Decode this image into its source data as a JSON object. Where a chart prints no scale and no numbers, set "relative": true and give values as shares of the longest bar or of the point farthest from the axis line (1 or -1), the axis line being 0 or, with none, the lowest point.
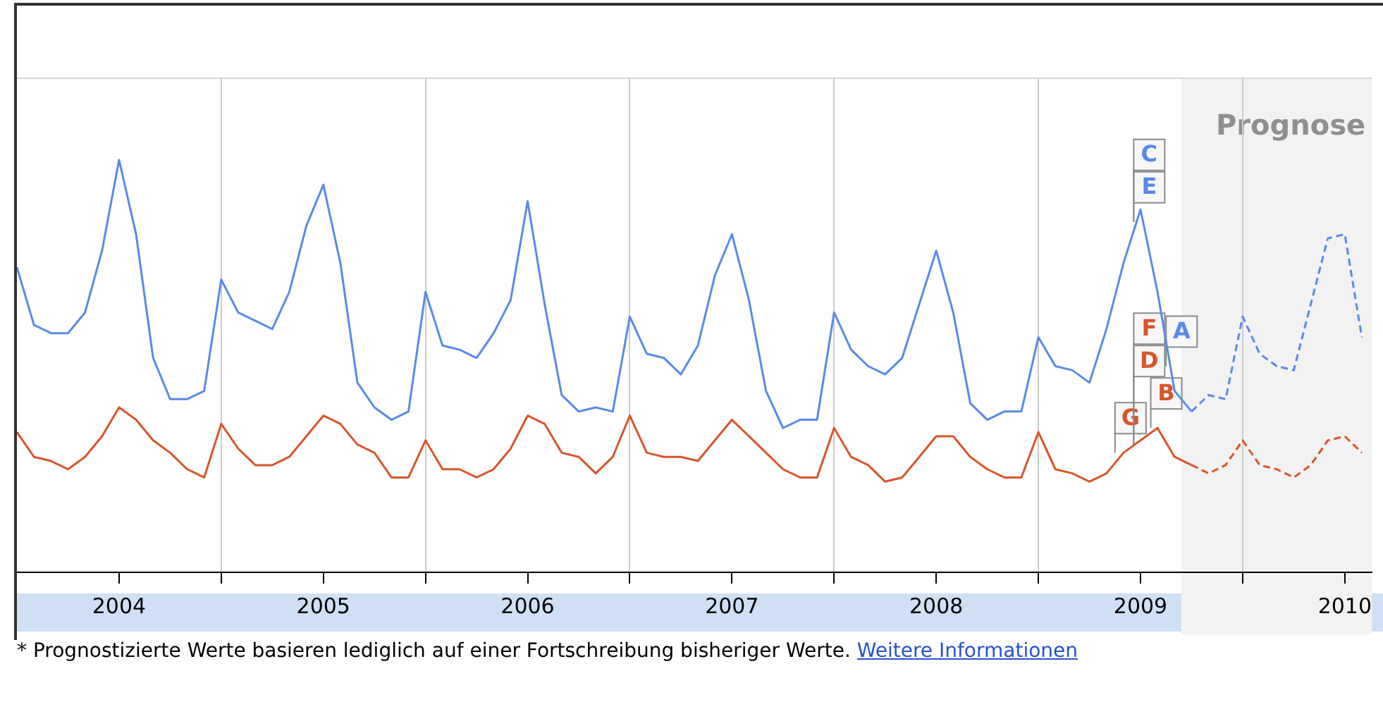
{
  "chart_data": {
    "type": "line",
    "relative": true,
    "legend": false,
    "grid": "x",
    "marker": "none",
    "x": [
      "2004-01",
      "2004-02",
      "2004-03",
      "2004-04",
      "2004-05",
      "2004-06",
      "2004-07",
      "2004-08",
      "2004-09",
      "2004-10",
      "2004-11",
      "2004-12",
      "2005-01",
      "2005-02",
      "2005-03",
      "2005-04",
      "2005-05",
      "2005-06",
      "2005-07",
      "2005-08",
      "2005-09",
      "2005-10",
      "2005-11",
      "2005-12",
      "2006-01",
      "2006-02",
      "2006-03",
      "2006-04",
      "2006-05",
      "2006-06",
      "2006-07",
      "2006-08",
      "2006-09",
      "2006-10",
      "2006-11",
      "2006-12",
      "2007-01",
      "2007-02",
      "2007-03",
      "2007-04",
      "2007-05",
      "2007-06",
      "2007-07",
      "2007-08",
      "2007-09",
      "2007-10",
      "2007-11",
      "2007-12",
      "2008-01",
      "2008-02",
      "2008-03",
      "2008-04",
      "2008-05",
      "2008-06",
      "2008-07",
      "2008-08",
      "2008-09",
      "2008-10",
      "2008-11",
      "2008-12",
      "2009-01",
      "2009-02",
      "2009-03",
      "2009-04",
      "2009-05",
      "2009-06",
      "2009-07",
      "2009-08",
      "2009-09",
      "2009-10",
      "2009-11",
      "2009-12",
      "2010-01",
      "2010-02",
      "2010-03",
      "2010-04",
      "2010-05",
      "2010-06",
      "2010-07",
      "2010-08"
    ],
    "xlim": [
      "2004-01",
      "2010-08-19"
    ],
    "xticks": [
      {
        "value": "2004-07",
        "label": "2004"
      },
      {
        "value": "2005",
        "label": null
      },
      {
        "value": "2005-07",
        "label": "2005"
      },
      {
        "value": "2006",
        "label": null
      },
      {
        "value": "2006-07",
        "label": "2006"
      },
      {
        "value": "2007",
        "label": null
      },
      {
        "value": "2007-07",
        "label": "2007"
      },
      {
        "value": "2008",
        "label": null
      },
      {
        "value": "2008-07",
        "label": "2008"
      },
      {
        "value": "2009",
        "label": null
      },
      {
        "value": "2009-07",
        "label": "2009"
      },
      {
        "value": "2010",
        "label": null
      },
      {
        "value": "2010-07",
        "label": "2010"
      }
    ],
    "series": [
      {
        "color": "#5a8ae8",
        "line_style": "solid",
        "values": [
          0.74,
          0.6,
          0.58,
          0.58,
          0.63,
          0.78,
          1.0,
          0.82,
          0.52,
          0.42,
          0.42,
          0.44,
          0.71,
          0.63,
          0.61,
          0.59,
          0.68,
          0.84,
          0.94,
          0.75,
          0.46,
          0.4,
          0.37,
          0.39,
          0.68,
          0.55,
          0.54,
          0.52,
          0.58,
          0.66,
          0.9,
          0.65,
          0.43,
          0.39,
          0.4,
          0.39,
          0.62,
          0.53,
          0.52,
          0.48,
          0.55,
          0.72,
          0.82,
          0.66,
          0.44,
          0.35,
          0.37,
          0.37,
          0.63,
          0.54,
          0.5,
          0.48,
          0.52,
          0.65,
          0.78,
          0.63,
          0.41,
          0.37,
          0.39,
          0.39,
          0.57,
          0.5,
          0.49,
          0.46,
          0.59,
          0.75,
          0.88,
          0.68,
          0.44,
          0.39,
          null,
          null,
          null,
          null,
          null,
          null,
          null,
          null,
          null,
          null
        ]
      },
      {
        "color": "#d9552b",
        "line_style": "solid",
        "values": [
          0.34,
          0.28,
          0.27,
          0.25,
          0.28,
          0.33,
          0.4,
          0.37,
          0.32,
          0.29,
          0.25,
          0.23,
          0.36,
          0.3,
          0.26,
          0.26,
          0.28,
          0.33,
          0.38,
          0.36,
          0.31,
          0.29,
          0.23,
          0.23,
          0.32,
          0.25,
          0.25,
          0.23,
          0.25,
          0.3,
          0.38,
          0.36,
          0.29,
          0.28,
          0.24,
          0.28,
          0.38,
          0.29,
          0.28,
          0.28,
          0.27,
          0.32,
          0.37,
          0.33,
          0.29,
          0.25,
          0.23,
          0.23,
          0.35,
          0.28,
          0.26,
          0.22,
          0.23,
          0.28,
          0.33,
          0.33,
          0.28,
          0.25,
          0.23,
          0.23,
          0.34,
          0.25,
          0.24,
          0.22,
          0.24,
          0.29,
          0.32,
          0.35,
          0.28,
          0.26,
          null,
          null,
          null,
          null,
          null,
          null,
          null,
          null,
          null,
          null
        ]
      },
      {
        "color": "#5a8ae8",
        "line_style": "dashed",
        "values": [
          null,
          null,
          null,
          null,
          null,
          null,
          null,
          null,
          null,
          null,
          null,
          null,
          null,
          null,
          null,
          null,
          null,
          null,
          null,
          null,
          null,
          null,
          null,
          null,
          null,
          null,
          null,
          null,
          null,
          null,
          null,
          null,
          null,
          null,
          null,
          null,
          null,
          null,
          null,
          null,
          null,
          null,
          null,
          null,
          null,
          null,
          null,
          null,
          null,
          null,
          null,
          null,
          null,
          null,
          null,
          null,
          null,
          null,
          null,
          null,
          null,
          null,
          null,
          null,
          null,
          null,
          null,
          null,
          null,
          0.39,
          0.43,
          0.42,
          0.62,
          0.53,
          0.5,
          0.49,
          0.65,
          0.81,
          0.82,
          0.57
        ]
      },
      {
        "color": "#d9552b",
        "line_style": "dashed",
        "values": [
          null,
          null,
          null,
          null,
          null,
          null,
          null,
          null,
          null,
          null,
          null,
          null,
          null,
          null,
          null,
          null,
          null,
          null,
          null,
          null,
          null,
          null,
          null,
          null,
          null,
          null,
          null,
          null,
          null,
          null,
          null,
          null,
          null,
          null,
          null,
          null,
          null,
          null,
          null,
          null,
          null,
          null,
          null,
          null,
          null,
          null,
          null,
          null,
          null,
          null,
          null,
          null,
          null,
          null,
          null,
          null,
          null,
          null,
          null,
          null,
          null,
          null,
          null,
          null,
          null,
          null,
          null,
          null,
          null,
          0.26,
          0.24,
          0.26,
          0.32,
          0.26,
          0.25,
          0.23,
          0.26,
          0.32,
          0.33,
          0.29
        ]
      }
    ],
    "bands": [
      {
        "axis": "x",
        "from": "2009-09-13",
        "to": "2010-08-19",
        "label": "Prognose",
        "color": "#f2f2f2"
      }
    ],
    "annotations": [
      {
        "text": "G",
        "x": "2009-05-15",
        "y": 0.29
      },
      {
        "text": "B",
        "x": "2009-07-18",
        "y": 0.35
      },
      {
        "text": "A",
        "x": "2009-08-15",
        "y": 0.5
      },
      {
        "text": "D",
        "x": "2009-06-18",
        "y": 0.31
      },
      {
        "text": "F",
        "x": "2009-06-18",
        "y": 0.31
      },
      {
        "text": "E",
        "x": "2009-06-18",
        "y": 0.85
      },
      {
        "text": "C",
        "x": "2009-06-18",
        "y": 0.85
      },
      "* Prognostizierte Werte basieren lediglich auf einer Fortschreibung bisheriger Werte.",
      "Weitere Informationen"
    ]
  }
}
